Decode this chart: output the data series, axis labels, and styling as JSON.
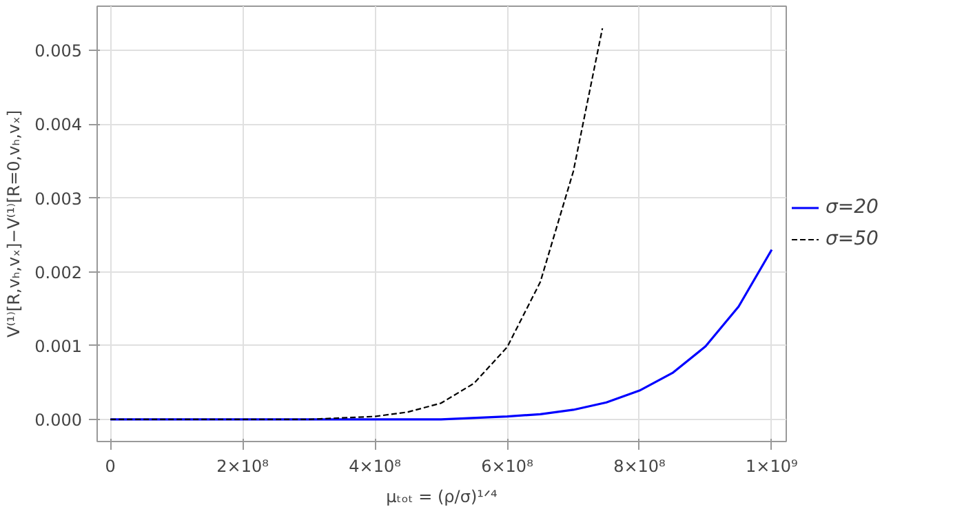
{
  "chart_data": {
    "type": "line",
    "xlabel": "μₜₒₜ = (ρ/σ)¹ᐟ⁴",
    "ylabel": "V⁽¹⁾[R,vₕ,vₓ]−V⁽¹⁾[R=0,vₕ,vₓ]",
    "xlim": [
      -20000000,
      1022000000
    ],
    "ylim": [
      -0.0003,
      0.0056
    ],
    "xticks": [
      {
        "value": 0,
        "label": "0"
      },
      {
        "value": 200000000,
        "label": "2×10⁸"
      },
      {
        "value": 400000000,
        "label": "4×10⁸"
      },
      {
        "value": 600000000,
        "label": "6×10⁸"
      },
      {
        "value": 800000000,
        "label": "8×10⁸"
      },
      {
        "value": 1000000000,
        "label": "1×10⁹"
      }
    ],
    "yticks": [
      {
        "value": 0,
        "label": "0.000"
      },
      {
        "value": 0.001,
        "label": "0.001"
      },
      {
        "value": 0.002,
        "label": "0.002"
      },
      {
        "value": 0.003,
        "label": "0.003"
      },
      {
        "value": 0.004,
        "label": "0.004"
      },
      {
        "value": 0.005,
        "label": "0.005"
      }
    ],
    "grid": true,
    "legend": "right",
    "series": [
      {
        "name": "σ=20",
        "color": "#0000ff",
        "line_style": "solid",
        "x": [
          0,
          100000000,
          200000000,
          300000000,
          400000000,
          500000000,
          600000000,
          650000000,
          700000000,
          750000000,
          800000000,
          850000000,
          900000000,
          950000000,
          1000000000
        ],
        "values": [
          0,
          0,
          0,
          0,
          0,
          0,
          4e-05,
          7e-05,
          0.00013,
          0.00023,
          0.00039,
          0.00063,
          0.00099,
          0.00153,
          0.0023
        ]
      },
      {
        "name": "σ=50",
        "color": "#000000",
        "line_style": "dashed",
        "x": [
          0,
          100000000,
          200000000,
          300000000,
          400000000,
          450000000,
          500000000,
          550000000,
          600000000,
          650000000,
          700000000,
          744000000
        ],
        "values": [
          0,
          0,
          0,
          0,
          4e-05,
          0.0001,
          0.00022,
          0.00049,
          0.00098,
          0.00186,
          0.00336,
          0.0053
        ]
      }
    ]
  }
}
